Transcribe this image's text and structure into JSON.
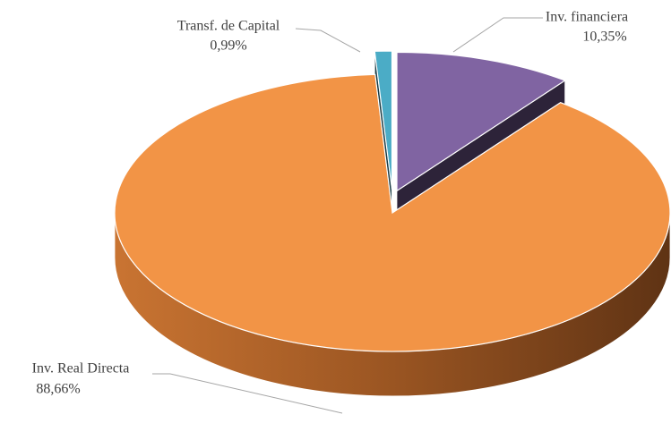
{
  "chart_data": {
    "type": "pie",
    "categories": [
      "Inv. financiera",
      "Inv. Real Directa",
      "Transf. de Capital"
    ],
    "values": [
      10.35,
      88.66,
      0.99
    ],
    "value_labels": [
      "10,35%",
      "88,66%",
      "0,99%"
    ],
    "colors": [
      "#8064a2",
      "#f29446",
      "#4bacc6"
    ],
    "three_d": true
  }
}
